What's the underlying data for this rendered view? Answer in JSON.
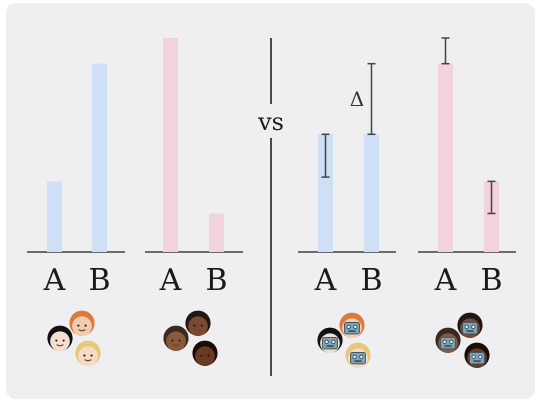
{
  "vs_label": "vs",
  "delta_label": "Δ",
  "colors": {
    "blue": "#cfe0f6",
    "pink": "#f2d2de",
    "axis": "#6b6b6b",
    "divider": "#4a4a4a",
    "error_bar": "#444444"
  },
  "panels": [
    {
      "group_icon": "light-skin-people-group-icon",
      "color": "blue",
      "categories": [
        "A",
        "B"
      ],
      "values": [
        0.33,
        0.88
      ]
    },
    {
      "group_icon": "dark-skin-people-group-icon",
      "color": "pink",
      "categories": [
        "A",
        "B"
      ],
      "values": [
        1.0,
        0.18
      ]
    },
    {
      "group_icon": "light-skin-robot-masked-group-icon",
      "color": "blue",
      "categories": [
        "A",
        "B"
      ],
      "values": [
        0.55,
        0.55
      ],
      "error_bars": [
        [
          0.35,
          0.55
        ],
        [
          0.55,
          0.88
        ]
      ],
      "delta_marker": true
    },
    {
      "group_icon": "dark-skin-robot-masked-group-icon",
      "color": "pink",
      "categories": [
        "A",
        "B"
      ],
      "values": [
        0.88,
        0.33
      ],
      "error_bars": [
        [
          0.88,
          1.0
        ],
        [
          0.18,
          0.33
        ]
      ]
    }
  ]
}
